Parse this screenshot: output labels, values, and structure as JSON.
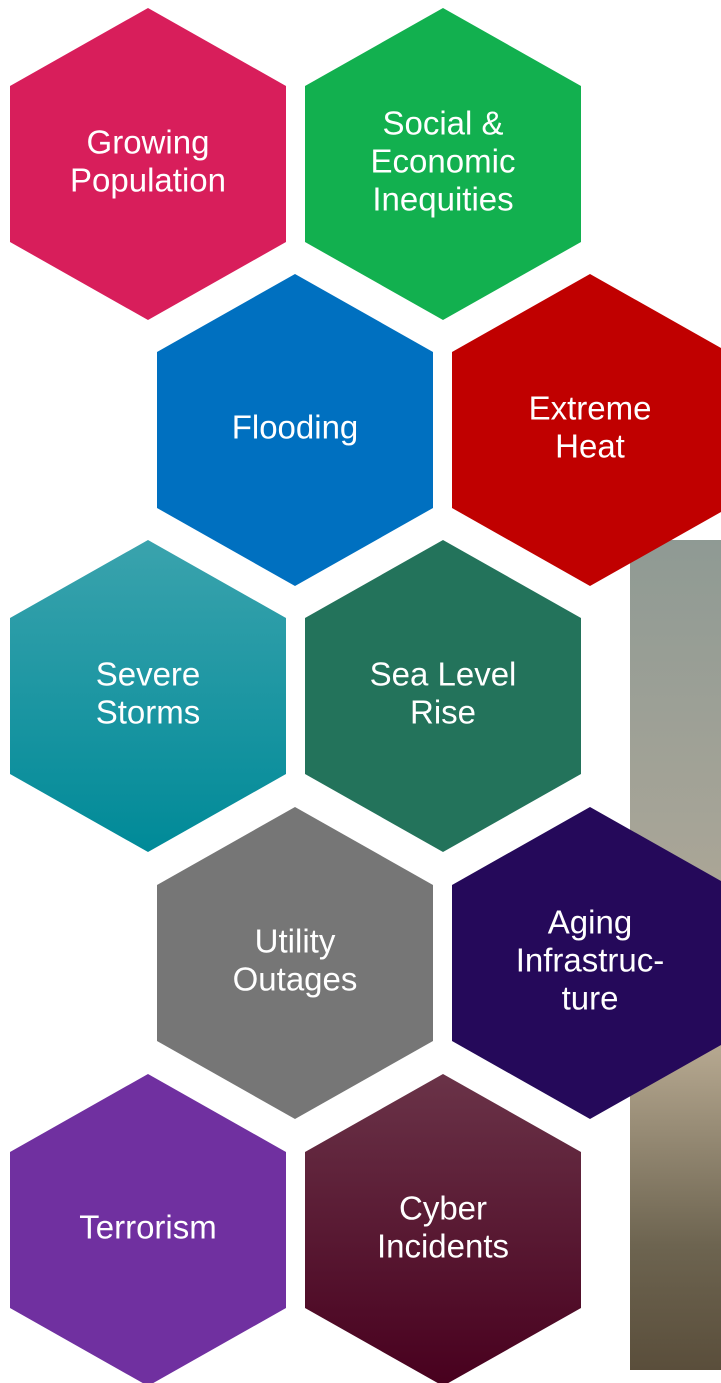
{
  "hexagons": [
    {
      "lines": [
        "Growing",
        "Population"
      ]
    },
    {
      "lines": [
        "Social &",
        "Economic",
        "Inequities"
      ]
    },
    {
      "lines": [
        "Flooding"
      ]
    },
    {
      "lines": [
        "Extreme",
        "Heat"
      ]
    },
    {
      "lines": [
        "Severe",
        "Storms"
      ]
    },
    {
      "lines": [
        "Sea Level",
        "Rise"
      ]
    },
    {
      "lines": [
        "Utility",
        "Outages"
      ]
    },
    {
      "lines": [
        "Aging",
        "Infrastruc-",
        "ture"
      ]
    },
    {
      "lines": [
        "Terrorism"
      ]
    },
    {
      "lines": [
        "Cyber",
        "Incidents"
      ]
    }
  ]
}
